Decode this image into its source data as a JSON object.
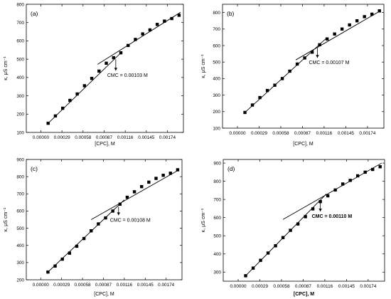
{
  "chart_data": [
    {
      "type": "scatter",
      "panel_label": "(a)",
      "xlabel": "[CPC], M",
      "xlabel_bold": false,
      "ylabel": "κ, μS cm⁻¹",
      "xlim": [
        -0.0002,
        0.00196
      ],
      "ylim": [
        100,
        800
      ],
      "xticks": [
        0.0,
        0.00029,
        0.00058,
        0.00087,
        0.00116,
        0.00145,
        0.00174
      ],
      "xtick_labels": [
        "0.00000",
        "0.00029",
        "0.00058",
        "0.00087",
        "0.00116",
        "0.00145",
        "0.00174"
      ],
      "yticks": [
        100,
        200,
        300,
        400,
        500,
        600,
        700,
        800
      ],
      "ytick_labels": [
        "100",
        "200",
        "300",
        "400",
        "500",
        "600",
        "700",
        "800"
      ],
      "annotation": "CMC = 0.00103 M",
      "annotation_bold": false,
      "cmc": 0.00103,
      "x": [
        0.0001,
        0.0002,
        0.0003,
        0.0004,
        0.0005,
        0.0006,
        0.0007,
        0.0008,
        0.0009,
        0.001,
        0.0011,
        0.0012,
        0.0013,
        0.0014,
        0.0015,
        0.0016,
        0.0017,
        0.0018,
        0.0019
      ],
      "y": [
        150,
        190,
        232,
        275,
        310,
        355,
        395,
        435,
        478,
        508,
        535,
        575,
        608,
        638,
        660,
        690,
        708,
        722,
        740
      ],
      "fit_pre": {
        "x": [
          0.0001,
          0.00112
        ],
        "y": [
          150,
          542
        ]
      },
      "fit_post": {
        "x": [
          0.00078,
          0.00192
        ],
        "y": [
          472,
          756
        ]
      }
    },
    {
      "type": "scatter",
      "panel_label": "(b)",
      "xlabel": "[CPC], M",
      "xlabel_bold": false,
      "ylabel": "κ, μS cm⁻¹",
      "xlim": [
        -0.0002,
        0.00196
      ],
      "ylim": [
        100,
        850
      ],
      "xticks": [
        0.0,
        0.00029,
        0.00058,
        0.00087,
        0.00116,
        0.00145,
        0.00174
      ],
      "xtick_labels": [
        "0.00000",
        "0.00029",
        "0.00058",
        "0.00087",
        "0.00116",
        "0.00145",
        "0.00174"
      ],
      "yticks": [
        100,
        200,
        300,
        400,
        500,
        600,
        700,
        800
      ],
      "ytick_labels": [
        "100",
        "200",
        "300",
        "400",
        "500",
        "600",
        "700",
        "800"
      ],
      "annotation": "CMC = 0.00107 M",
      "annotation_bold": false,
      "cmc": 0.00107,
      "x": [
        0.0001,
        0.0002,
        0.0003,
        0.0004,
        0.0005,
        0.0006,
        0.0007,
        0.0008,
        0.0009,
        0.001,
        0.0011,
        0.0012,
        0.0013,
        0.0014,
        0.0015,
        0.0016,
        0.0017,
        0.0018,
        0.0019
      ],
      "y": [
        195,
        240,
        285,
        328,
        360,
        400,
        445,
        488,
        525,
        560,
        605,
        640,
        670,
        700,
        725,
        750,
        775,
        790,
        810
      ],
      "fit_pre": {
        "x": [
          0.0001,
          0.00118
        ],
        "y": [
          195,
          640
        ]
      },
      "fit_post": {
        "x": [
          0.00078,
          0.00192
        ],
        "y": [
          513,
          812
        ]
      }
    },
    {
      "type": "scatter",
      "panel_label": "(c)",
      "xlabel": "[CPC], M",
      "xlabel_bold": false,
      "ylabel": "κ, μS cm⁻¹",
      "xlim": [
        -0.0002,
        0.00196
      ],
      "ylim": [
        200,
        900
      ],
      "xticks": [
        0.0,
        0.00029,
        0.00058,
        0.00087,
        0.00116,
        0.00145,
        0.00174
      ],
      "xtick_labels": [
        "0.00000",
        "0.00029",
        "0.00058",
        "0.00087",
        "0.00116",
        "0.00145",
        "0.00174"
      ],
      "yticks": [
        200,
        300,
        400,
        500,
        600,
        700,
        800,
        900
      ],
      "ytick_labels": [
        "200",
        "300",
        "400",
        "500",
        "600",
        "700",
        "800",
        "900"
      ],
      "annotation": "CMC = 0.00108 M",
      "annotation_bold": false,
      "cmc": 0.00108,
      "x": [
        0.0001,
        0.0002,
        0.0003,
        0.0004,
        0.0005,
        0.0006,
        0.0007,
        0.0008,
        0.0009,
        0.001,
        0.0011,
        0.0012,
        0.0013,
        0.0014,
        0.0015,
        0.0016,
        0.0017,
        0.0018,
        0.0019
      ],
      "y": [
        245,
        280,
        320,
        355,
        395,
        440,
        485,
        525,
        560,
        600,
        640,
        680,
        712,
        742,
        768,
        790,
        808,
        820,
        840
      ],
      "fit_pre": {
        "x": [
          0.0001,
          0.00116
        ],
        "y": [
          245,
          665
        ]
      },
      "fit_post": {
        "x": [
          0.0007,
          0.00192
        ],
        "y": [
          550,
          840
        ]
      }
    },
    {
      "type": "scatter",
      "panel_label": "(d)",
      "xlabel": "[CPC], M",
      "xlabel_bold": true,
      "ylabel": "κ, μS cm⁻¹",
      "xlim": [
        -0.0002,
        0.00196
      ],
      "ylim": [
        250,
        920
      ],
      "xticks": [
        0.0,
        0.00029,
        0.00058,
        0.00087,
        0.00116,
        0.00145,
        0.00174
      ],
      "xtick_labels": [
        "0.00000",
        "0.00029",
        "0.00058",
        "0.00087",
        "0.00116",
        "0.00145",
        "0.00174"
      ],
      "yticks": [
        300,
        400,
        500,
        600,
        700,
        800,
        900
      ],
      "ytick_labels": [
        "300",
        "400",
        "500",
        "600",
        "700",
        "800",
        "900"
      ],
      "annotation": "CMC = 0.00110 M",
      "annotation_bold": true,
      "cmc": 0.0011,
      "x": [
        0.0001,
        0.0002,
        0.0003,
        0.0004,
        0.0005,
        0.0006,
        0.0007,
        0.0008,
        0.0009,
        0.001,
        0.0011,
        0.0012,
        0.0013,
        0.0014,
        0.0015,
        0.0016,
        0.0017,
        0.0018,
        0.0019
      ],
      "y": [
        280,
        322,
        365,
        405,
        445,
        490,
        530,
        565,
        605,
        648,
        688,
        720,
        752,
        785,
        805,
        830,
        850,
        865,
        880
      ],
      "fit_pre": {
        "x": [
          0.0001,
          0.00118
        ],
        "y": [
          280,
          730
        ]
      },
      "fit_post": {
        "x": [
          0.0006,
          0.00192
        ],
        "y": [
          590,
          900
        ]
      }
    }
  ]
}
